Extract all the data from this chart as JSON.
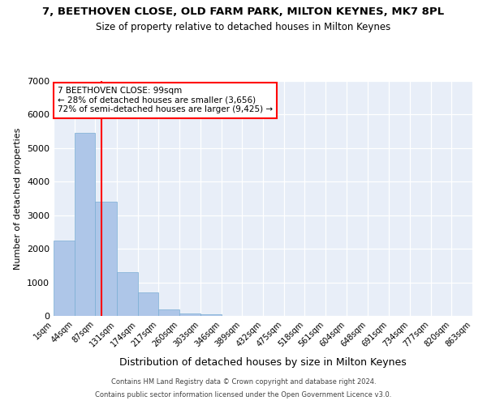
{
  "title": "7, BEETHOVEN CLOSE, OLD FARM PARK, MILTON KEYNES, MK7 8PL",
  "subtitle": "Size of property relative to detached houses in Milton Keynes",
  "xlabel": "Distribution of detached houses by size in Milton Keynes",
  "ylabel": "Number of detached properties",
  "footer_line1": "Contains HM Land Registry data © Crown copyright and database right 2024.",
  "footer_line2": "Contains public sector information licensed under the Open Government Licence v3.0.",
  "annotation_title": "7 BEETHOVEN CLOSE: 99sqm",
  "annotation_line1": "← 28% of detached houses are smaller (3,656)",
  "annotation_line2": "72% of semi-detached houses are larger (9,425) →",
  "property_size_sqm": 99,
  "bar_edges": [
    1,
    44,
    87,
    131,
    174,
    217,
    260,
    303,
    346,
    389,
    432,
    475,
    518,
    561,
    604,
    648,
    691,
    734,
    777,
    820,
    863
  ],
  "bar_heights": [
    2250,
    5450,
    3400,
    1300,
    700,
    200,
    80,
    60,
    0,
    0,
    0,
    0,
    0,
    0,
    0,
    0,
    0,
    0,
    0,
    0
  ],
  "bar_color": "#aec6e8",
  "bar_edgecolor": "#7aadd4",
  "red_line_x": 99,
  "ylim_max": 7000,
  "yticks": [
    0,
    1000,
    2000,
    3000,
    4000,
    5000,
    6000,
    7000
  ],
  "bg_color": "#e8eef8"
}
